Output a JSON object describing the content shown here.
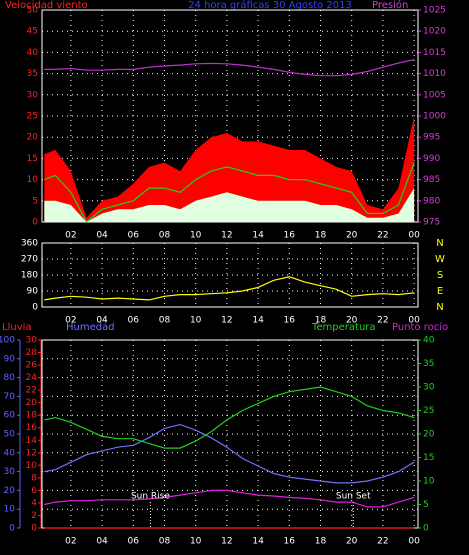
{
  "chart_data": [
    {
      "type": "line",
      "title": "24 hora gráficas   30 Agosto 2013",
      "y_label": "Velocidad viento",
      "x": [
        0.3,
        1,
        2,
        3,
        4,
        5,
        6,
        7,
        8,
        9,
        10,
        11,
        12,
        13,
        14,
        15,
        16,
        17,
        18,
        19,
        20,
        21,
        22,
        23,
        24
      ],
      "xlim": [
        0.15,
        24.25
      ],
      "xticks": [
        {
          "value": 2,
          "label": "02"
        },
        {
          "value": 4,
          "label": "04"
        },
        {
          "value": 6,
          "label": "06"
        },
        {
          "value": 8,
          "label": "08"
        },
        10,
        12,
        14,
        16,
        18,
        20,
        22,
        {
          "value": 24,
          "label": "00"
        }
      ],
      "ylim": [
        0,
        50
      ],
      "yticks": [
        0,
        5,
        10,
        15,
        20,
        25,
        30,
        35,
        40,
        45,
        50
      ],
      "ytick_color": "#ff2020",
      "y2lim": [
        975,
        1025
      ],
      "y2ticks": [
        975,
        980,
        985,
        990,
        995,
        1000,
        1005,
        1010,
        1015,
        1020,
        1025
      ],
      "y2tick_color": "#d040d0",
      "grid": true,
      "series": [
        {
          "color": "#ff0000",
          "style": "area",
          "values": [
            16,
            17,
            12,
            1,
            5,
            6,
            9,
            13,
            14,
            12,
            17,
            20,
            21,
            19,
            19,
            18,
            17,
            17,
            15,
            13,
            12,
            4,
            3,
            8,
            25
          ]
        },
        {
          "color": "#20d020",
          "style": "line",
          "values": [
            10,
            11,
            7,
            0,
            3,
            4,
            5,
            8,
            8,
            7,
            10,
            12,
            13,
            12,
            11,
            11,
            10,
            10,
            9,
            8,
            7,
            2,
            2,
            4,
            14
          ]
        },
        {
          "color": "#e0ffe0",
          "style": "area",
          "values": [
            5,
            5,
            4,
            0,
            2,
            3,
            3,
            4,
            4,
            3,
            5,
            6,
            7,
            6,
            5,
            5,
            5,
            5,
            4,
            4,
            3,
            1,
            1,
            2,
            8
          ]
        },
        {
          "name": "Presión",
          "color": "#c030d0",
          "style": "line",
          "axis": "y2",
          "values": [
            1011,
            1011,
            1011.2,
            1010.8,
            1010.8,
            1011,
            1011,
            1011.5,
            1011.8,
            1012,
            1012.3,
            1012.4,
            1012.3,
            1012,
            1011.5,
            1011,
            1010.3,
            1009.8,
            1009.5,
            1009.5,
            1009.8,
            1010.5,
            1011.5,
            1012.5,
            1013.3
          ]
        }
      ]
    },
    {
      "type": "line",
      "x": [
        0.3,
        1,
        2,
        3,
        4,
        5,
        6,
        7,
        8,
        9,
        10,
        11,
        12,
        13,
        14,
        15,
        16,
        17,
        18,
        19,
        20,
        21,
        22,
        23,
        24
      ],
      "xlim": [
        0.15,
        24.25
      ],
      "xticks": [
        {
          "value": 2,
          "label": "02"
        },
        {
          "value": 4,
          "label": "04"
        },
        {
          "value": 6,
          "label": "06"
        },
        {
          "value": 8,
          "label": "08"
        },
        10,
        12,
        14,
        16,
        18,
        20,
        22,
        {
          "value": 24,
          "label": "00"
        }
      ],
      "ylim": [
        0,
        360
      ],
      "yticks": [
        0,
        90,
        180,
        270,
        360
      ],
      "ytick_color": "#ffffff",
      "grid": true,
      "compass": [
        "N",
        "W",
        "S",
        "E",
        "N"
      ],
      "series": [
        {
          "color": "#ffff00",
          "style": "line",
          "values": [
            40,
            50,
            60,
            55,
            45,
            50,
            45,
            40,
            60,
            70,
            70,
            75,
            80,
            90,
            110,
            150,
            170,
            140,
            120,
            100,
            60,
            70,
            75,
            70,
            80
          ]
        }
      ]
    },
    {
      "type": "line",
      "x": [
        0.3,
        1,
        2,
        3,
        4,
        5,
        6,
        7,
        8,
        9,
        10,
        11,
        12,
        13,
        14,
        15,
        16,
        17,
        18,
        19,
        20,
        21,
        22,
        23,
        24
      ],
      "xlim": [
        0.15,
        24.25
      ],
      "xticks": [
        {
          "value": 2,
          "label": "02"
        },
        {
          "value": 4,
          "label": "04"
        },
        {
          "value": 6,
          "label": "06"
        },
        {
          "value": 8,
          "label": "08"
        },
        10,
        12,
        14,
        16,
        18,
        20,
        22,
        {
          "value": 24,
          "label": "00"
        }
      ],
      "ylim": [
        0,
        100
      ],
      "yticks": [
        0,
        10,
        20,
        30,
        40,
        50,
        60,
        70,
        80,
        90,
        100
      ],
      "ytick_color": "#6060ff",
      "y3lim": [
        0,
        30
      ],
      "y3ticks": [
        0,
        2,
        4,
        6,
        8,
        10,
        12,
        14,
        16,
        18,
        20,
        22,
        24,
        26,
        28,
        30
      ],
      "y3tick_color": "#ff2020",
      "y2lim": [
        0,
        40
      ],
      "y2ticks": [
        0,
        5,
        10,
        15,
        20,
        25,
        30,
        35,
        40
      ],
      "y2tick_color": "#20d020",
      "grid": true,
      "annotations": [
        {
          "text": "Sun Rise",
          "x": 7.1
        },
        {
          "text": "Sun Set",
          "x": 20.1
        }
      ],
      "series": [
        {
          "name": "Lluvia",
          "color": "#ff2020",
          "style": "line",
          "axis": "y3",
          "values": [
            0,
            0,
            0,
            0,
            0,
            0,
            0,
            0,
            0,
            0,
            0,
            0,
            0,
            0,
            0,
            0,
            0,
            0,
            0,
            0,
            0,
            0,
            0,
            0,
            0
          ]
        },
        {
          "name": "Humedad",
          "color": "#7070ff",
          "style": "line",
          "values": [
            30,
            31,
            35,
            39,
            41,
            43,
            44,
            48,
            53,
            55,
            52,
            48,
            43,
            37,
            33,
            29,
            27,
            26,
            25,
            24,
            24,
            25,
            27,
            30,
            35
          ]
        },
        {
          "name": "Temperatura",
          "color": "#20d020",
          "style": "line",
          "axis": "y2",
          "values": [
            23,
            23.5,
            22.5,
            21,
            19.5,
            19,
            19,
            18,
            17,
            17,
            18.5,
            20.5,
            23,
            25,
            26.5,
            28,
            29,
            29.5,
            30,
            29,
            28,
            26,
            25,
            24.5,
            23.5
          ]
        },
        {
          "name": "Punto rocío",
          "color": "#e020e0",
          "style": "line",
          "axis": "y2",
          "values": [
            5,
            5.5,
            5.8,
            5.8,
            6,
            6,
            6,
            6.2,
            6.5,
            7,
            7.5,
            8,
            8,
            7.5,
            7,
            6.8,
            6.5,
            6.3,
            6,
            5.5,
            5.5,
            4.5,
            4.5,
            5.5,
            6.5
          ]
        }
      ]
    }
  ]
}
